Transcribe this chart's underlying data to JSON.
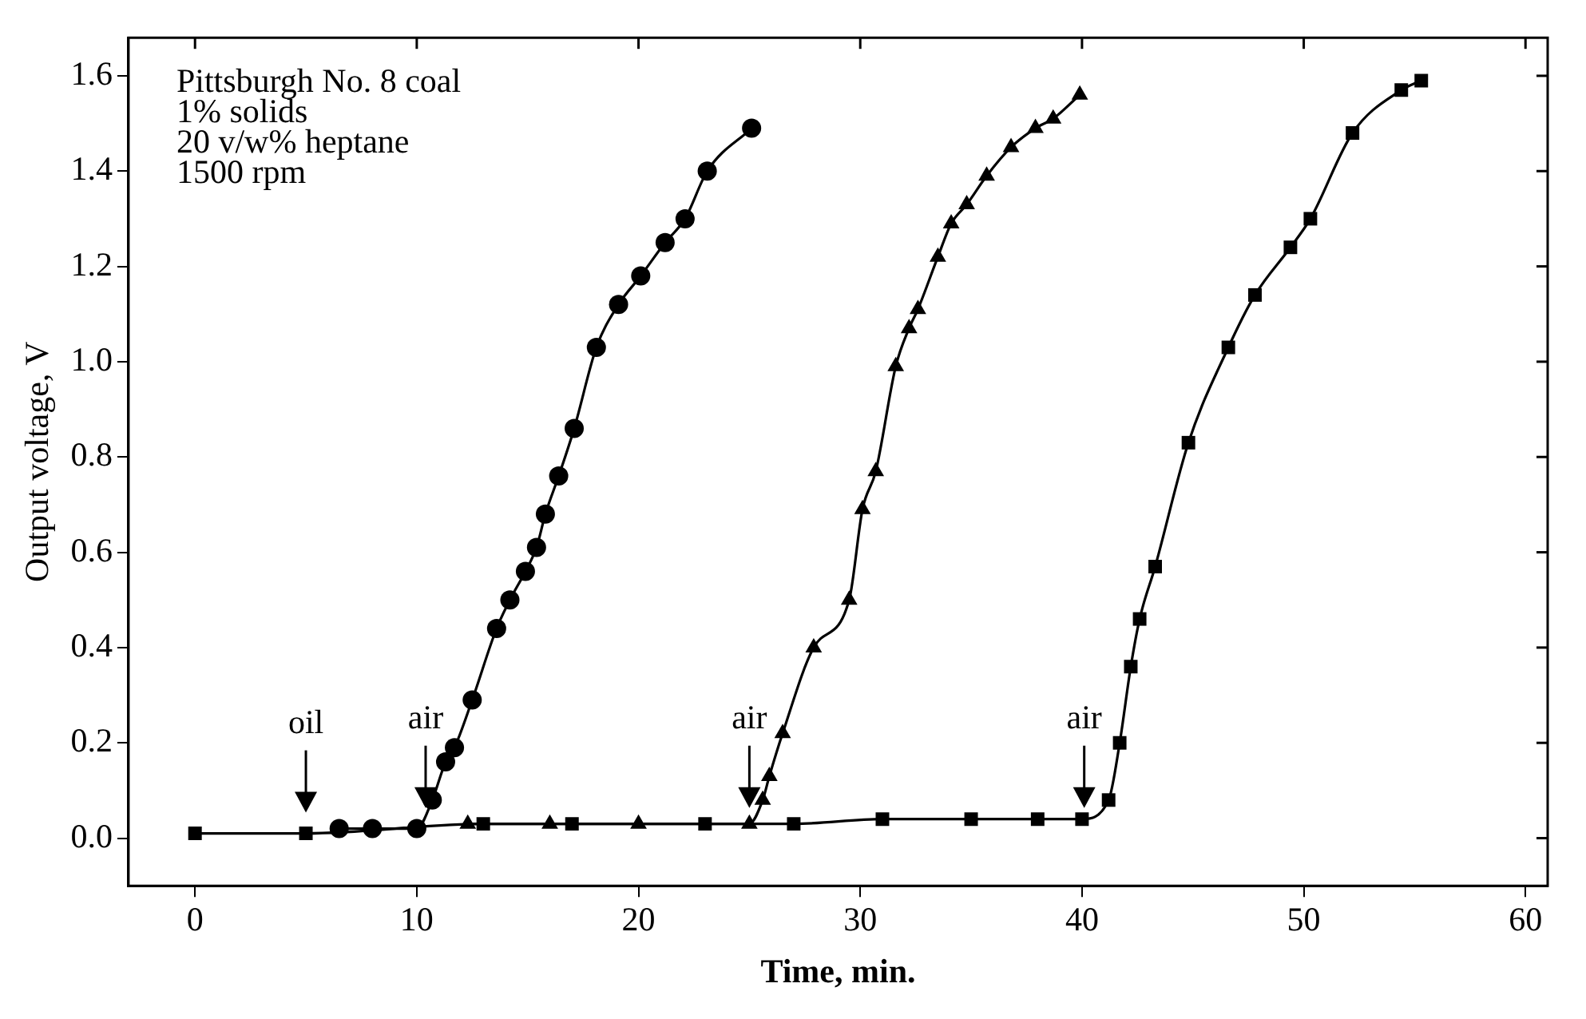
{
  "chart_data": {
    "type": "line",
    "xlabel": "Time, min.",
    "ylabel": "Output voltage, V",
    "xlim": [
      -3,
      61
    ],
    "ylim": [
      -0.1,
      1.68
    ],
    "xticks": [
      0,
      10,
      20,
      30,
      40,
      50,
      60
    ],
    "yticks": [
      {
        "value": 0,
        "label": "0.0"
      },
      {
        "value": 0.2,
        "label": "0.2"
      },
      {
        "value": 0.4,
        "label": "0.4"
      },
      {
        "value": 0.6,
        "label": "0.6"
      },
      {
        "value": 0.8,
        "label": "0.8"
      },
      {
        "value": 1,
        "label": "1.0"
      },
      {
        "value": 1.2,
        "label": "1.2"
      },
      {
        "value": 1.4,
        "label": "1.4"
      },
      {
        "value": 1.6,
        "label": "1.6"
      }
    ],
    "grid": false,
    "legend": false,
    "line_style": "solid",
    "series": [
      {
        "color": "#000000",
        "marker": "circle",
        "x": [
          6.5,
          8,
          10,
          10.7,
          11.3,
          11.7,
          12.5,
          13.6,
          14.2,
          14.9,
          15.4,
          15.8,
          16.4,
          17.1,
          18.1,
          19.1,
          20.1,
          21.2,
          22.1,
          23.1,
          25.1
        ],
        "values": [
          0.02,
          0.02,
          0.02,
          0.08,
          0.16,
          0.19,
          0.29,
          0.44,
          0.5,
          0.56,
          0.61,
          0.68,
          0.76,
          0.86,
          1.03,
          1.12,
          1.18,
          1.25,
          1.3,
          1.4,
          1.49
        ]
      },
      {
        "color": "#000000",
        "marker": "triangle",
        "x": [
          12.3,
          16,
          20,
          25,
          25.6,
          25.9,
          26.5,
          27.9,
          29.5,
          30.1,
          30.7,
          31.6,
          32.2,
          32.6,
          33.5,
          34.1,
          34.8,
          35.7,
          36.8,
          37.9,
          38.7,
          39.9
        ],
        "values": [
          0.03,
          0.03,
          0.03,
          0.03,
          0.08,
          0.13,
          0.22,
          0.4,
          0.5,
          0.69,
          0.77,
          0.99,
          1.07,
          1.11,
          1.22,
          1.29,
          1.33,
          1.39,
          1.45,
          1.49,
          1.51,
          1.56
        ]
      },
      {
        "color": "#000000",
        "marker": "square",
        "x": [
          0,
          5,
          13,
          17,
          23,
          27,
          31,
          35,
          38,
          40,
          41.2,
          41.7,
          42.2,
          42.6,
          43.3,
          44.8,
          46.6,
          47.8,
          49.4,
          50.3,
          52.2,
          54.4,
          55.3
        ],
        "values": [
          0.01,
          0.01,
          0.03,
          0.03,
          0.03,
          0.03,
          0.04,
          0.04,
          0.04,
          0.04,
          0.08,
          0.2,
          0.36,
          0.46,
          0.57,
          0.83,
          1.03,
          1.14,
          1.24,
          1.3,
          1.48,
          1.57,
          1.59
        ]
      }
    ],
    "annotations": [
      "Pittsburgh No. 8 coal",
      "1% solids",
      "20 v/w% heptane",
      "1500 rpm",
      {
        "text": "oil",
        "x": 5,
        "y": 0.01
      },
      {
        "text": "air",
        "x": 10.4,
        "y": 0.06
      },
      {
        "text": "air",
        "x": 25,
        "y": 0.06
      },
      {
        "text": "air",
        "x": 40.1,
        "y": 0.06
      }
    ]
  }
}
